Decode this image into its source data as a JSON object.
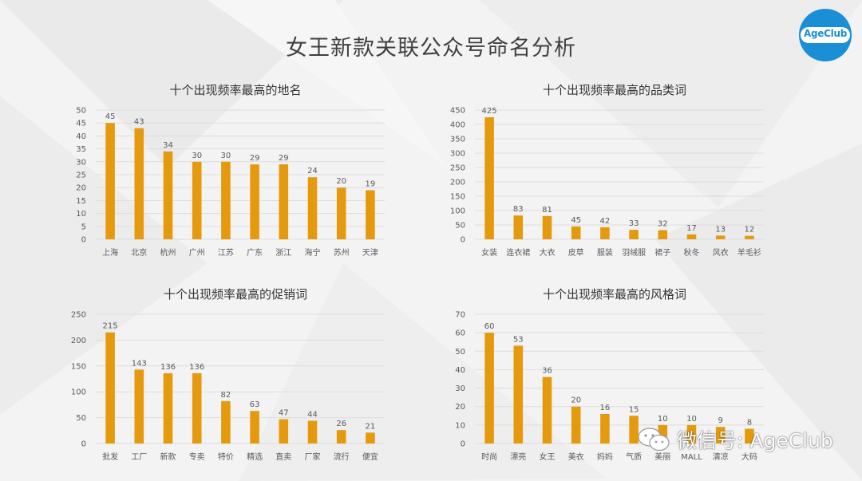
{
  "page": {
    "title": "女王新款关联公众号命名分析",
    "logo_text": "AgeClub",
    "watermark": "微信号: AgeClub"
  },
  "colors": {
    "bar": "#E59A0E",
    "accent": "#1b8fd6"
  },
  "chart_data": [
    {
      "type": "bar",
      "title": "十个出现频率最高的地名",
      "categories": [
        "上海",
        "北京",
        "杭州",
        "广州",
        "江苏",
        "广东",
        "浙江",
        "海宁",
        "苏州",
        "天津"
      ],
      "values": [
        45,
        43,
        34,
        30,
        30,
        29,
        29,
        24,
        20,
        19
      ],
      "yticks": [
        0,
        5,
        10,
        15,
        20,
        25,
        30,
        35,
        40,
        45,
        50
      ],
      "ylim": [
        0,
        50
      ]
    },
    {
      "type": "bar",
      "title": "十个出现频率最高的品类词",
      "categories": [
        "女装",
        "连衣裙",
        "大衣",
        "皮草",
        "服装",
        "羽绒服",
        "裙子",
        "秋冬",
        "风衣",
        "羊毛衫"
      ],
      "values": [
        425,
        83,
        81,
        45,
        42,
        33,
        32,
        17,
        13,
        12
      ],
      "yticks": [
        0,
        50,
        100,
        150,
        200,
        250,
        300,
        350,
        400,
        450
      ],
      "ylim": [
        0,
        450
      ]
    },
    {
      "type": "bar",
      "title": "十个出现频率最高的促销词",
      "categories": [
        "批发",
        "工厂",
        "新款",
        "专卖",
        "特价",
        "精选",
        "直卖",
        "厂家",
        "流行",
        "便宜"
      ],
      "values": [
        215,
        143,
        136,
        136,
        82,
        63,
        47,
        44,
        26,
        21
      ],
      "yticks": [
        0,
        50,
        100,
        150,
        200,
        250
      ],
      "ylim": [
        0,
        250
      ]
    },
    {
      "type": "bar",
      "title": "十个出现频率最高的风格词",
      "categories": [
        "时尚",
        "漂亮",
        "女王",
        "美衣",
        "妈妈",
        "气质",
        "美丽",
        "MALL",
        "清凉",
        "大码"
      ],
      "values": [
        60,
        53,
        36,
        20,
        16,
        15,
        10,
        10,
        9,
        8
      ],
      "yticks": [
        0,
        10,
        20,
        30,
        40,
        50,
        60,
        70
      ],
      "ylim": [
        0,
        70
      ]
    }
  ]
}
